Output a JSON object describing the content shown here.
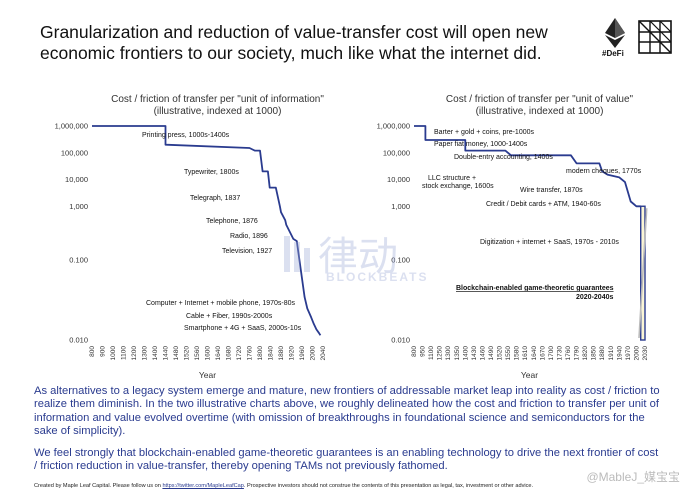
{
  "header": {
    "title_line1": "Granularization and reduction of value-transfer cost will open new",
    "title_line2": "economic frontiers to our society, much like what the internet did.",
    "logo_label": "#DeFi"
  },
  "chart_data": [
    {
      "type": "line",
      "title_line1": "Cost / friction of transfer per \"unit of information\"",
      "title_line2": "(illustrative, indexed at 1000)",
      "xlabel": "Year",
      "ylabel": "",
      "log_y": true,
      "ylim": [
        0.01,
        1000000
      ],
      "xlim": [
        800,
        2040
      ],
      "y_ticks": [
        "1,000,000",
        "100,000",
        "10,000",
        "1,000",
        "0.100",
        "0.010"
      ],
      "x_ticks": [
        "800",
        "900",
        "1000",
        "1100",
        "1200",
        "1300",
        "1400",
        "1440",
        "1480",
        "1520",
        "1560",
        "1600",
        "1640",
        "1680",
        "1720",
        "1760",
        "1800",
        "1840",
        "1880",
        "1920",
        "1960",
        "2000",
        "2040"
      ],
      "series": [
        {
          "x": [
            800,
            1440,
            1440,
            1760,
            1780,
            1800,
            1810,
            1830,
            1837,
            1860,
            1876,
            1880,
            1896,
            1900,
            1927,
            1940,
            1970,
            1980,
            1995,
            2005,
            2015,
            2025,
            2030
          ],
          "y": [
            1000000,
            1000000,
            200000,
            150000,
            120000,
            120000,
            20000,
            20000,
            5000,
            5000,
            1000,
            600,
            300,
            200,
            60,
            50,
            0.4,
            0.15,
            0.07,
            0.04,
            0.025,
            0.018,
            0.015
          ]
        }
      ],
      "annotations": [
        "Printing press, 1000s-1400s",
        "Typewriter, 1800s",
        "Telegraph, 1837",
        "Telephone, 1876",
        "Radio, 1896",
        "Television, 1927",
        "Computer + Internet + mobile phone, 1970s-80s",
        "Cable + Fiber, 1990s-2000s",
        "Smartphone + 4G + SaaS, 2000s-10s"
      ]
    },
    {
      "type": "line",
      "title_line1": "Cost / friction of transfer per \"unit of value\"",
      "title_line2": "(illustrative, indexed at 1000)",
      "xlabel": "Year",
      "ylabel": "",
      "log_y": true,
      "ylim": [
        0.01,
        1000000
      ],
      "xlim": [
        800,
        2040
      ],
      "y_ticks": [
        "1,000,000",
        "100,000",
        "10,000",
        "1,000",
        "0.100",
        "0.010"
      ],
      "x_ticks": [
        "800",
        "950",
        "1100",
        "1250",
        "1300",
        "1350",
        "1400",
        "1430",
        "1460",
        "1490",
        "1520",
        "1550",
        "1580",
        "1610",
        "1640",
        "1670",
        "1700",
        "1730",
        "1760",
        "1790",
        "1820",
        "1850",
        "1880",
        "1910",
        "1940",
        "1970",
        "2000",
        "2030"
      ],
      "series": [
        {
          "x": [
            800,
            1000,
            1000,
            1400,
            1400,
            1540,
            1560,
            1600,
            1700,
            1770,
            1790,
            1870,
            1880,
            1900,
            1940,
            1960,
            1980,
            2000,
            2010,
            2015
          ],
          "y": [
            1000000,
            1000000,
            300000,
            300000,
            120000,
            120000,
            80000,
            80000,
            80000,
            80000,
            40000,
            40000,
            20000,
            15000,
            12000,
            8000,
            1500,
            1000,
            1000,
            1000
          ]
        }
      ],
      "annotations": [
        "Barter + gold + coins, pre-1000s",
        "Paper fiat money, 1000-1400s",
        "Double-entry accounting, 1400s",
        "modern cheques, 1770s",
        "LLC structure +",
        "stock exchange, 1600s",
        "Wire transfer, 1870s",
        "Credit / Debit cards + ATM, 1940-60s",
        "Digitization + internet + SaaS, 1970s - 2010s",
        "Blockchain-enabled game-theoretic guarantees",
        "2020-2040s"
      ],
      "highlight_box": {
        "x_range": [
          2015,
          2040
        ],
        "y_range": [
          0.01,
          1000
        ]
      }
    }
  ],
  "body": {
    "paragraph1": "As alternatives to a legacy system emerge and mature, new frontiers of addressable market leap into reality as cost / friction to realize them diminish. In the two illustrative charts above, we roughly delineated how the cost and friction to transfer per unit of information and value evolved overtime (with omission of breakthroughs in foundational science and semiconductors for the sake of simplicity).",
    "paragraph2": "We feel strongly that blockchain-enabled game-theoretic guarantees is an enabling technology to drive the next frontier of cost / friction reduction in value-transfer, thereby opening TAMs not previously fathomed."
  },
  "footer": {
    "prefix": "Created by Maple Leaf Capital. Please follow us on",
    "link": "https://twitter.com/MapleLeafCap",
    "suffix": ". Prospective investors should not construe the contents of this presentation as legal, tax, investment or other advice."
  },
  "watermarks": {
    "center_cn": "律动",
    "center_en": "BLOCKBEATS",
    "corner": "@MableJ_媒宝宝"
  },
  "colors": {
    "line": "#2a3b8f",
    "body_text": "#2a3b8f",
    "highlight_fill": "#fbf6d6",
    "highlight_stroke": "#2a3b8f"
  }
}
